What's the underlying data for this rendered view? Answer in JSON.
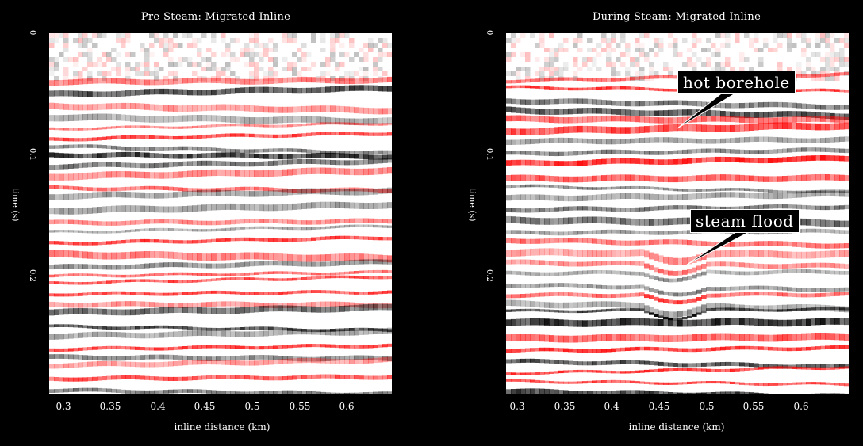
{
  "panels": [
    {
      "title": "Pre-Steam: Migrated Inline",
      "ylabel": "time (s)",
      "xlabel": "inline distance (km)",
      "yticks": [
        "0",
        "0.1",
        "0.2"
      ],
      "xticks": [
        "0.3",
        "0.35",
        "0.4",
        "0.45",
        "0.5",
        "0.55",
        "0.6"
      ]
    },
    {
      "title": "During Steam: Migrated Inline",
      "ylabel": "time (s)",
      "xlabel": "inline distance (km)",
      "yticks": [
        "0",
        "0.1",
        "0.2"
      ],
      "xticks": [
        "0.3",
        "0.35",
        "0.4",
        "0.45",
        "0.5",
        "0.55",
        "0.6"
      ],
      "annotations": [
        "hot borehole",
        "steam flood"
      ]
    }
  ],
  "colors": {
    "positive": "#ff0000",
    "negative": "#000000",
    "background": "#ffffff"
  }
}
